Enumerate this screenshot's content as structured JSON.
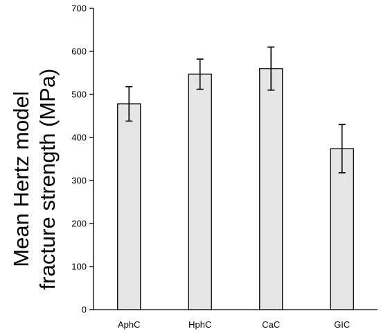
{
  "chart_data": {
    "type": "bar",
    "title": "",
    "xlabel": "",
    "ylabel_lines": [
      "Mean Hertz model",
      "fracture strength (MPa)"
    ],
    "categories": [
      "AphC",
      "HphC",
      "CaC",
      "GIC"
    ],
    "series": [
      {
        "values": [
          478,
          547,
          560,
          374
        ],
        "error": [
          40,
          35,
          50,
          56
        ]
      }
    ],
    "ylim": [
      0,
      700
    ],
    "yticks": [
      0,
      100,
      200,
      300,
      400,
      500,
      600,
      700
    ],
    "grid": false,
    "legend": "none",
    "colors": {
      "bar_fill": "#e6e6e6",
      "bar_stroke": "#000000",
      "axis": "#000000"
    }
  }
}
